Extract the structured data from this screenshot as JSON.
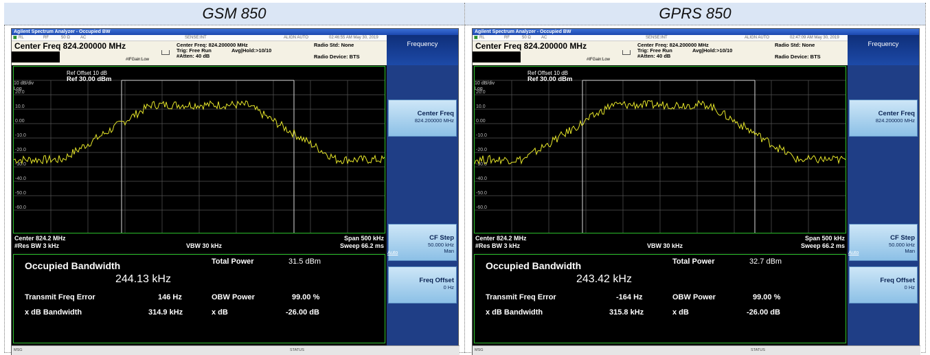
{
  "panels": [
    {
      "heading": "GSM 850",
      "app_title": "Agilent Spectrum Analyzer - Occupied BW",
      "status": {
        "rl": "RL",
        "rf": "RF",
        "ohm": "50 Ω",
        "ac": "AC",
        "sense": "SENSE:INT",
        "align": "ALIGN AUTO",
        "datetime": "02:46:55 AM May 30, 2019"
      },
      "center_freq_big": "Center Freq  824.200000 MHz",
      "settings": {
        "center_freq": "Center Freq: 824.200000 MHz",
        "trig": "Trig: Free Run",
        "avg_hold": "Avg|Hold:>10/10",
        "atten": "#Atten: 40 dB",
        "ifgain": "#IFGain:Low",
        "radio_std": "Radio Std: None",
        "radio_device": "Radio Device: BTS"
      },
      "ref_offset": "Ref Offset 10 dB",
      "ref_level": "Ref 30.00 dBm",
      "scale_div": "10 dB/div",
      "scale_type": "Log",
      "y_ticks": [
        "20.0",
        "10.0",
        "0.00",
        "-10.0",
        "-20.0",
        "-30.0",
        "-40.0",
        "-50.0",
        "-60.0"
      ],
      "center": "Center  824.2 MHz",
      "res_bw": "#Res BW  3 kHz",
      "vbw": "VBW  30 kHz",
      "span": "Span 500 kHz",
      "sweep": "Sweep  66.2 ms",
      "results": {
        "obw_label": "Occupied Bandwidth",
        "obw_value": "244.13 kHz",
        "total_power_label": "Total Power",
        "total_power_value": "31.5 dBm",
        "tfe_label": "Transmit Freq Error",
        "tfe_value": "146 Hz",
        "obw_power_label": "OBW Power",
        "obw_power_value": "99.00 %",
        "xdb_bw_label": "x dB Bandwidth",
        "xdb_bw_value": "314.9 kHz",
        "xdb_label": "x dB",
        "xdb_value": "-26.00 dB"
      },
      "softkeys": {
        "menu_title": "Frequency",
        "center_freq_label": "Center Freq",
        "center_freq_value": "824.200000 MHz",
        "cf_step_label": "CF Step",
        "cf_step_value": "50.000 kHz",
        "cf_step_mode": "Man",
        "auto_label": "Auto",
        "freq_offset_label": "Freq Offset",
        "freq_offset_value": "0 Hz"
      },
      "msg_label": "MSG",
      "status_label": "STATUS"
    },
    {
      "heading": "GPRS 850",
      "app_title": "Agilent Spectrum Analyzer - Occupied BW",
      "status": {
        "rl": "RL",
        "rf": "RF",
        "ohm": "50 Ω",
        "ac": "AC",
        "sense": "SENSE:INT",
        "align": "ALIGN AUTO",
        "datetime": "02:47:09 AM May 30, 2019"
      },
      "center_freq_big": "Center Freq  824.200000 MHz",
      "settings": {
        "center_freq": "Center Freq: 824.200000 MHz",
        "trig": "Trig: Free Run",
        "avg_hold": "Avg|Hold:>10/10",
        "atten": "#Atten: 40 dB",
        "ifgain": "#IFGain:Low",
        "radio_std": "Radio Std: None",
        "radio_device": "Radio Device: BTS"
      },
      "ref_offset": "Ref Offset 10 dB",
      "ref_level": "Ref 30.00 dBm",
      "scale_div": "10 dB/div",
      "scale_type": "Log",
      "y_ticks": [
        "20.0",
        "10.0",
        "0.00",
        "-10.0",
        "-20.0",
        "-30.0",
        "-40.0",
        "-50.0",
        "-60.0"
      ],
      "center": "Center  824.2 MHz",
      "res_bw": "#Res BW  3 kHz",
      "vbw": "VBW  30 kHz",
      "span": "Span 500 kHz",
      "sweep": "Sweep  66.2 ms",
      "results": {
        "obw_label": "Occupied Bandwidth",
        "obw_value": "243.42 kHz",
        "total_power_label": "Total Power",
        "total_power_value": "32.7 dBm",
        "tfe_label": "Transmit Freq Error",
        "tfe_value": "-164 Hz",
        "obw_power_label": "OBW Power",
        "obw_power_value": "99.00 %",
        "xdb_bw_label": "x dB Bandwidth",
        "xdb_bw_value": "315.8 kHz",
        "xdb_label": "x dB",
        "xdb_value": "-26.00 dB"
      },
      "softkeys": {
        "menu_title": "Frequency",
        "center_freq_label": "Center Freq",
        "center_freq_value": "824.200000 MHz",
        "cf_step_label": "CF Step",
        "cf_step_value": "50.000 kHz",
        "cf_step_mode": "Man",
        "auto_label": "Auto",
        "freq_offset_label": "Freq Offset",
        "freq_offset_value": "0 Hz"
      },
      "msg_label": "MSG",
      "status_label": "STATUS"
    }
  ],
  "colors": {
    "trace": "#e8e82a",
    "graph_border": "#2cc02c",
    "softkey": "#8cc0e6",
    "sidebar": "#1f3e86"
  }
}
